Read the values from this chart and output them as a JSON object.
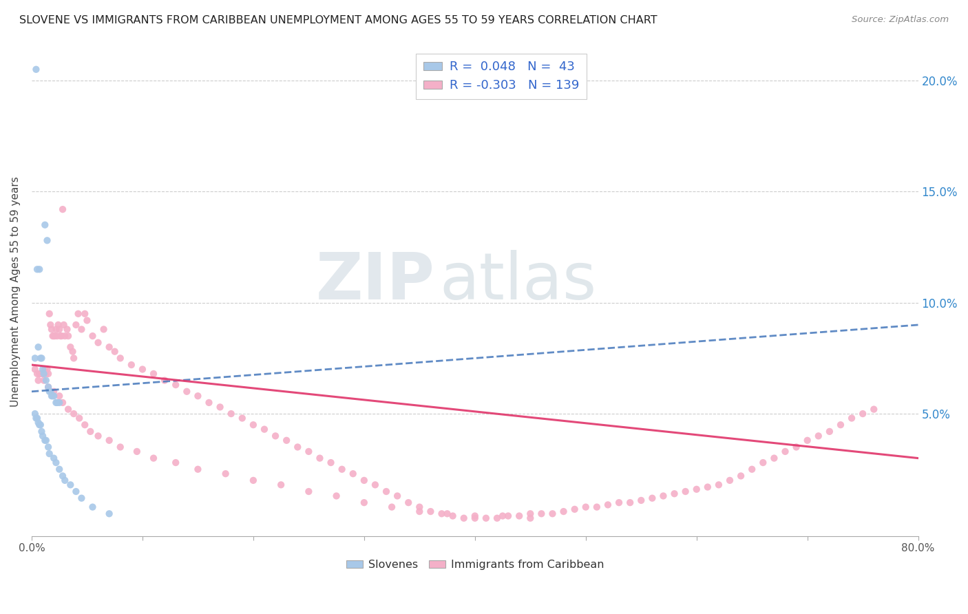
{
  "title": "SLOVENE VS IMMIGRANTS FROM CARIBBEAN UNEMPLOYMENT AMONG AGES 55 TO 59 YEARS CORRELATION CHART",
  "source": "Source: ZipAtlas.com",
  "ylabel": "Unemployment Among Ages 55 to 59 years",
  "legend_label1": "Slovenes",
  "legend_label2": "Immigrants from Caribbean",
  "R1": 0.048,
  "N1": 43,
  "R2": -0.303,
  "N2": 139,
  "color_slovene": "#a8c8e8",
  "color_caribbean": "#f4b0c8",
  "color_slovene_line": "#4477bb",
  "color_caribbean_line": "#e0406080",
  "color_legend_text": "#3366cc",
  "xlim": [
    0.0,
    0.8
  ],
  "ylim": [
    -0.005,
    0.215
  ],
  "ytick_values": [
    0.05,
    0.1,
    0.15,
    0.2
  ],
  "ytick_labels": [
    "5.0%",
    "10.0%",
    "15.0%",
    "20.0%"
  ],
  "watermark_zip": "ZIP",
  "watermark_atlas": "atlas",
  "background_color": "#ffffff",
  "slovene_x": [
    0.004,
    0.012,
    0.014,
    0.007,
    0.005,
    0.006,
    0.003,
    0.008,
    0.009,
    0.01,
    0.011,
    0.013,
    0.015,
    0.016,
    0.017,
    0.018,
    0.019,
    0.02,
    0.022,
    0.023,
    0.025,
    0.003,
    0.004,
    0.005,
    0.006,
    0.007,
    0.008,
    0.009,
    0.01,
    0.012,
    0.013,
    0.015,
    0.016,
    0.02,
    0.022,
    0.025,
    0.028,
    0.03,
    0.035,
    0.04,
    0.045,
    0.055,
    0.07
  ],
  "slovene_y": [
    0.205,
    0.135,
    0.128,
    0.115,
    0.115,
    0.08,
    0.075,
    0.075,
    0.075,
    0.07,
    0.068,
    0.065,
    0.062,
    0.06,
    0.06,
    0.058,
    0.058,
    0.058,
    0.055,
    0.055,
    0.055,
    0.05,
    0.048,
    0.048,
    0.046,
    0.045,
    0.045,
    0.042,
    0.04,
    0.038,
    0.038,
    0.035,
    0.032,
    0.03,
    0.028,
    0.025,
    0.022,
    0.02,
    0.018,
    0.015,
    0.012,
    0.008,
    0.005
  ],
  "caribbean_x": [
    0.003,
    0.005,
    0.007,
    0.008,
    0.009,
    0.01,
    0.012,
    0.013,
    0.014,
    0.015,
    0.016,
    0.017,
    0.018,
    0.019,
    0.02,
    0.021,
    0.022,
    0.023,
    0.024,
    0.025,
    0.026,
    0.027,
    0.028,
    0.029,
    0.03,
    0.032,
    0.033,
    0.035,
    0.037,
    0.038,
    0.04,
    0.042,
    0.045,
    0.048,
    0.05,
    0.055,
    0.06,
    0.065,
    0.07,
    0.075,
    0.08,
    0.09,
    0.1,
    0.11,
    0.12,
    0.13,
    0.14,
    0.15,
    0.16,
    0.17,
    0.18,
    0.19,
    0.2,
    0.21,
    0.22,
    0.23,
    0.24,
    0.25,
    0.26,
    0.27,
    0.28,
    0.29,
    0.3,
    0.31,
    0.32,
    0.33,
    0.34,
    0.35,
    0.36,
    0.37,
    0.38,
    0.39,
    0.4,
    0.41,
    0.42,
    0.43,
    0.44,
    0.45,
    0.46,
    0.47,
    0.48,
    0.49,
    0.5,
    0.51,
    0.52,
    0.53,
    0.54,
    0.55,
    0.56,
    0.57,
    0.58,
    0.59,
    0.6,
    0.61,
    0.62,
    0.63,
    0.64,
    0.65,
    0.66,
    0.67,
    0.68,
    0.69,
    0.7,
    0.71,
    0.72,
    0.73,
    0.74,
    0.75,
    0.76,
    0.006,
    0.011,
    0.015,
    0.02,
    0.025,
    0.028,
    0.033,
    0.038,
    0.043,
    0.048,
    0.053,
    0.06,
    0.07,
    0.08,
    0.095,
    0.11,
    0.13,
    0.15,
    0.175,
    0.2,
    0.225,
    0.25,
    0.275,
    0.3,
    0.325,
    0.35,
    0.375,
    0.4,
    0.425,
    0.45
  ],
  "caribbean_y": [
    0.07,
    0.068,
    0.068,
    0.068,
    0.068,
    0.068,
    0.07,
    0.068,
    0.07,
    0.068,
    0.095,
    0.09,
    0.088,
    0.085,
    0.085,
    0.085,
    0.088,
    0.085,
    0.09,
    0.088,
    0.085,
    0.085,
    0.142,
    0.09,
    0.085,
    0.088,
    0.085,
    0.08,
    0.078,
    0.075,
    0.09,
    0.095,
    0.088,
    0.095,
    0.092,
    0.085,
    0.082,
    0.088,
    0.08,
    0.078,
    0.075,
    0.072,
    0.07,
    0.068,
    0.065,
    0.063,
    0.06,
    0.058,
    0.055,
    0.053,
    0.05,
    0.048,
    0.045,
    0.043,
    0.04,
    0.038,
    0.035,
    0.033,
    0.03,
    0.028,
    0.025,
    0.023,
    0.02,
    0.018,
    0.015,
    0.013,
    0.01,
    0.008,
    0.006,
    0.005,
    0.004,
    0.003,
    0.003,
    0.003,
    0.003,
    0.004,
    0.004,
    0.005,
    0.005,
    0.005,
    0.006,
    0.007,
    0.008,
    0.008,
    0.009,
    0.01,
    0.01,
    0.011,
    0.012,
    0.013,
    0.014,
    0.015,
    0.016,
    0.017,
    0.018,
    0.02,
    0.022,
    0.025,
    0.028,
    0.03,
    0.033,
    0.035,
    0.038,
    0.04,
    0.042,
    0.045,
    0.048,
    0.05,
    0.052,
    0.065,
    0.065,
    0.062,
    0.06,
    0.058,
    0.055,
    0.052,
    0.05,
    0.048,
    0.045,
    0.042,
    0.04,
    0.038,
    0.035,
    0.033,
    0.03,
    0.028,
    0.025,
    0.023,
    0.02,
    0.018,
    0.015,
    0.013,
    0.01,
    0.008,
    0.006,
    0.005,
    0.004,
    0.004,
    0.003
  ],
  "slovene_trend_x": [
    0.0,
    0.8
  ],
  "slovene_trend_y": [
    0.06,
    0.09
  ],
  "caribbean_trend_x": [
    0.0,
    0.8
  ],
  "caribbean_trend_y": [
    0.072,
    0.03
  ]
}
